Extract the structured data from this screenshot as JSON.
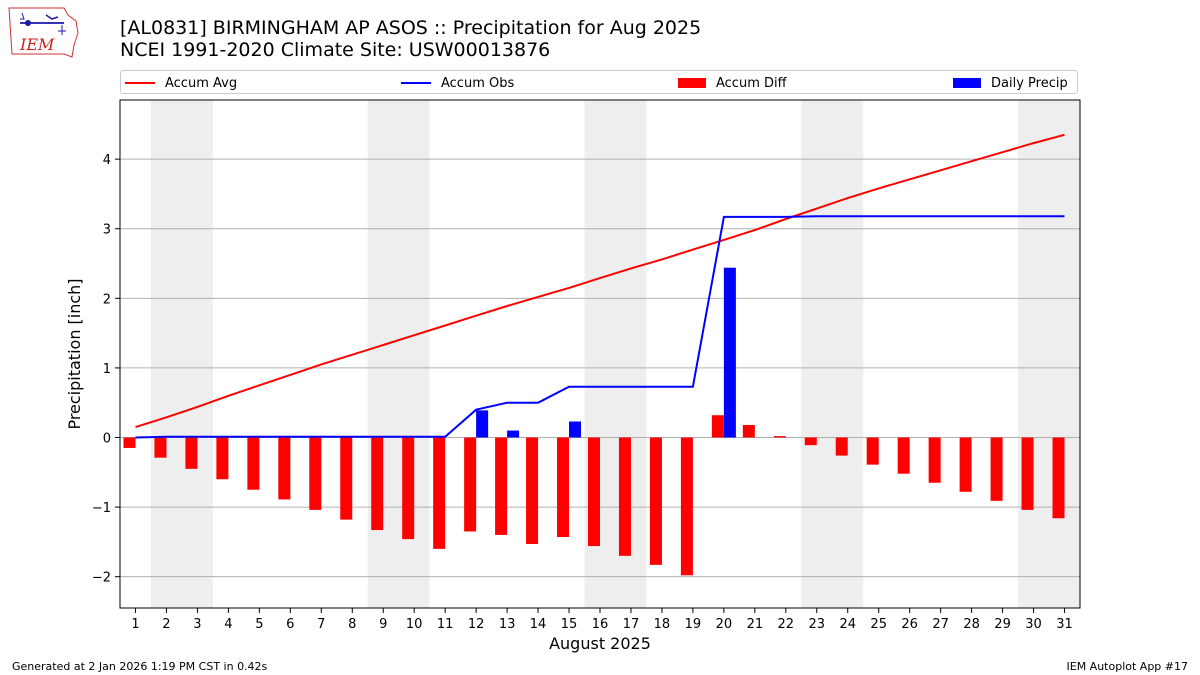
{
  "header": {
    "title_line1": "[AL0831] BIRMINGHAM AP ASOS :: Precipitation for Aug 2025",
    "title_line2": "NCEI 1991-2020 Climate Site: USW00013876"
  },
  "logo": {
    "text": "IEM"
  },
  "legend": [
    {
      "label": "Accum Avg",
      "kind": "line",
      "color": "#ff0000"
    },
    {
      "label": "Accum Obs",
      "kind": "line",
      "color": "#0000ff"
    },
    {
      "label": "Accum Diff",
      "kind": "patch",
      "color": "#ff0000"
    },
    {
      "label": "Daily Precip",
      "kind": "patch",
      "color": "#0000ff"
    }
  ],
  "footer": {
    "left": "Generated at 2 Jan 2026 1:19 PM CST in 0.42s",
    "right": "IEM Autoplot App #17"
  },
  "colors": {
    "avg": "#ff0000",
    "obs": "#0000ff",
    "weekend_shade": "#eeeeee",
    "grid": "#b0b0b0"
  },
  "chart_data": {
    "type": "bar",
    "title": "[AL0831] BIRMINGHAM AP ASOS :: Precipitation for Aug 2025",
    "xlabel": "August 2025",
    "ylabel": "Precipitation [inch]",
    "xlim": [
      0.5,
      31.5
    ],
    "ylim": [
      -2.45,
      4.85
    ],
    "yticks": [
      -2,
      -1,
      0,
      1,
      2,
      3,
      4
    ],
    "ytick_labels": [
      "−2",
      "−1",
      "0",
      "1",
      "2",
      "3",
      "4"
    ],
    "grid": true,
    "legend_position": "top",
    "days": [
      1,
      2,
      3,
      4,
      5,
      6,
      7,
      8,
      9,
      10,
      11,
      12,
      13,
      14,
      15,
      16,
      17,
      18,
      19,
      20,
      21,
      22,
      23,
      24,
      25,
      26,
      27,
      28,
      29,
      30,
      31
    ],
    "weekend_spans": [
      [
        1.5,
        3.5
      ],
      [
        8.5,
        10.5
      ],
      [
        15.5,
        17.5
      ],
      [
        22.5,
        24.5
      ],
      [
        29.5,
        31.5
      ]
    ],
    "series": [
      {
        "name": "Accum Avg",
        "type": "line",
        "values": [
          0.15,
          0.29,
          0.44,
          0.6,
          0.75,
          0.9,
          1.05,
          1.19,
          1.33,
          1.47,
          1.61,
          1.75,
          1.89,
          2.02,
          2.15,
          2.29,
          2.43,
          2.56,
          2.7,
          2.84,
          2.98,
          3.14,
          3.29,
          3.44,
          3.58,
          3.71,
          3.84,
          3.97,
          4.1,
          4.23,
          4.35
        ]
      },
      {
        "name": "Accum Obs",
        "type": "line",
        "values": [
          0,
          0.01,
          0.01,
          0.01,
          0.01,
          0.01,
          0.01,
          0.01,
          0.01,
          0.01,
          0.01,
          0.4,
          0.5,
          0.5,
          0.73,
          0.73,
          0.73,
          0.73,
          0.73,
          3.17,
          3.17,
          3.17,
          3.18,
          3.18,
          3.18,
          3.18,
          3.18,
          3.18,
          3.18,
          3.18,
          3.18
        ]
      },
      {
        "name": "Accum Diff",
        "type": "bar",
        "values": [
          -0.15,
          -0.29,
          -0.45,
          -0.6,
          -0.75,
          -0.89,
          -1.04,
          -1.18,
          -1.33,
          -1.46,
          -1.6,
          -1.35,
          -1.4,
          -1.53,
          -1.43,
          -1.56,
          -1.7,
          -1.83,
          -1.98,
          0.32,
          0.18,
          0.02,
          -0.11,
          -0.26,
          -0.39,
          -0.52,
          -0.65,
          -0.78,
          -0.91,
          -1.04,
          -1.16
        ]
      },
      {
        "name": "Daily Precip",
        "type": "bar",
        "values": [
          0,
          0,
          0,
          0,
          0,
          0,
          0,
          0,
          0,
          0,
          0,
          0.39,
          0.1,
          0,
          0.23,
          0,
          0,
          0,
          0,
          2.44,
          0,
          0,
          0,
          0,
          0,
          0,
          0,
          0,
          0,
          0,
          0
        ]
      }
    ]
  }
}
